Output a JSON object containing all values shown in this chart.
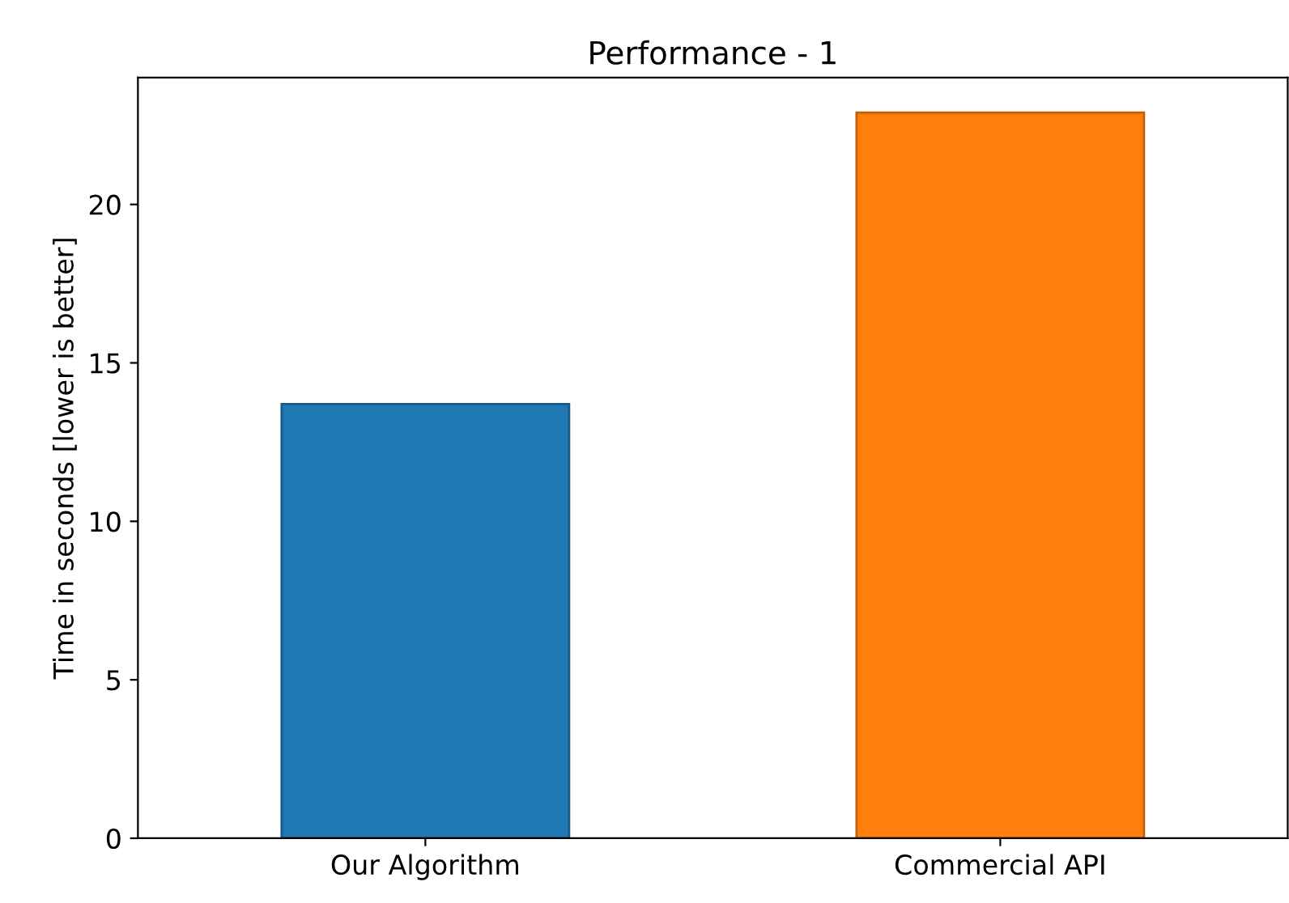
{
  "chart_data": {
    "type": "bar",
    "title": "Performance - 1",
    "ylabel": "Time in seconds [lower is better]",
    "categories": [
      "Our Algorithm",
      "Commercial API"
    ],
    "values": [
      13.7,
      22.9
    ],
    "colors": [
      "#1f77b4",
      "#ff7f0e"
    ],
    "ylim": [
      0,
      24
    ],
    "yticks": [
      0,
      5,
      10,
      15,
      20
    ],
    "grid": false,
    "legend": false
  }
}
